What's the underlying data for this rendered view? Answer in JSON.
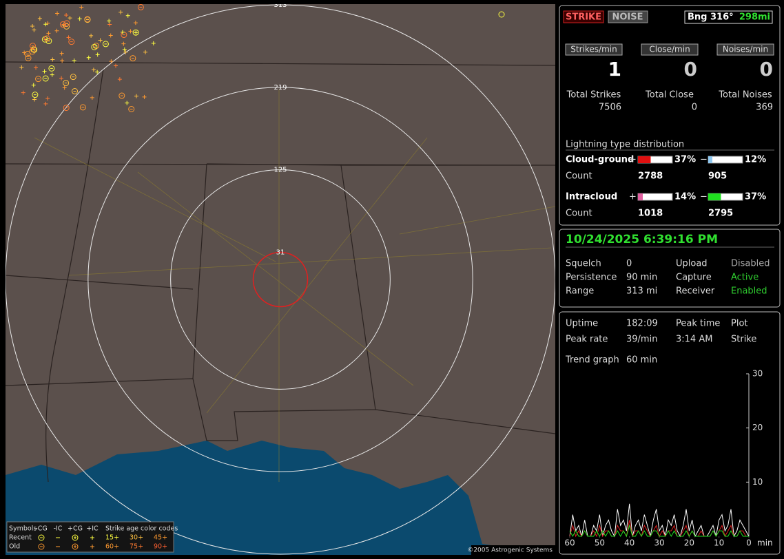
{
  "map": {
    "range_rings": [
      313,
      219,
      125,
      31
    ],
    "legend": {
      "symbols_label": "Symbols",
      "symbol_headers": [
        "-CG",
        "-IC",
        "+CG",
        "+IC"
      ],
      "age_title": "Strike age color codes",
      "rows": [
        {
          "label": "Recent",
          "ages": [
            "15+",
            "30+",
            "45+"
          ],
          "colors": [
            "#ffff40",
            "#ffc040",
            "#ff9a30"
          ]
        },
        {
          "label": "Old",
          "ages": [
            "60+",
            "75+",
            "90+"
          ],
          "colors": [
            "#ff9a30",
            "#ff7a30",
            "#ff6030"
          ]
        }
      ]
    },
    "copyright": "©2005 Astrogenic Systems"
  },
  "header": {
    "mode_buttons": [
      "STRIKE",
      "NOISE"
    ],
    "bearing": "Bng 316°",
    "distance": "298mi"
  },
  "rates": [
    {
      "label": "Strikes/min",
      "value": 1,
      "total_label": "Total Strikes",
      "total": 7506
    },
    {
      "label": "Close/min",
      "value": 0,
      "total_label": "Total Close",
      "total": 0
    },
    {
      "label": "Noises/min",
      "value": 0,
      "total_label": "Total Noises",
      "total": 369
    }
  ],
  "distribution": {
    "title": "Lightning type distribution",
    "plus_sign": "+",
    "minus_sign": "−",
    "count_label": "Count",
    "rows": [
      {
        "name": "Cloud-ground",
        "plus": 37,
        "plus_label": "37%",
        "plus_color": "#e01010",
        "minus": 12,
        "minus_label": "12%",
        "minus_color": "#90c8f0",
        "plus_count": 2788,
        "minus_count": 905
      },
      {
        "name": "Intracloud",
        "plus": 14,
        "plus_label": "14%",
        "plus_color": "#e060a0",
        "minus": 37,
        "minus_label": "37%",
        "minus_color": "#20e020",
        "plus_count": 1018,
        "minus_count": 2795
      }
    ]
  },
  "status": {
    "datetime": "10/24/2025 6:39:16 PM",
    "rows": [
      [
        "Squelch",
        "0",
        "Upload",
        "Disabled"
      ],
      [
        "Persistence",
        "90 min",
        "Capture",
        "Active"
      ],
      [
        "Range",
        "313 mi",
        "Receiver",
        "Enabled"
      ]
    ],
    "value_colors": [
      "#aaaaaa",
      "#30d030",
      "#30d030"
    ]
  },
  "stats": {
    "rows": [
      [
        "Uptime",
        "182:09",
        "Peak time",
        "Plot"
      ],
      [
        "Peak rate",
        "39/min",
        "3:14 AM",
        "Strike"
      ]
    ],
    "trend_label": "Trend graph",
    "trend_window": "60 min"
  },
  "trend": {
    "type": "line",
    "xlim": [
      60,
      0
    ],
    "xticks": [
      60,
      50,
      40,
      30,
      20,
      10,
      0
    ],
    "x_unit": "min",
    "ylim": [
      0,
      30
    ],
    "yticks": [
      10,
      20,
      30
    ],
    "x": [
      60,
      59,
      58,
      57,
      56,
      55,
      54,
      53,
      52,
      51,
      50,
      49,
      48,
      47,
      46,
      45,
      44,
      43,
      42,
      41,
      40,
      39,
      38,
      37,
      36,
      35,
      34,
      33,
      32,
      31,
      30,
      29,
      28,
      27,
      26,
      25,
      24,
      23,
      22,
      21,
      20,
      19,
      18,
      17,
      16,
      15,
      14,
      13,
      12,
      11,
      10,
      9,
      8,
      7,
      6,
      5,
      4,
      3,
      2,
      1,
      0
    ],
    "series": [
      {
        "color": "#ffffff",
        "values": [
          0,
          4,
          1,
          2,
          0,
          3,
          0,
          0,
          2,
          1,
          4,
          0,
          2,
          3,
          1,
          0,
          5,
          2,
          3,
          1,
          6,
          0,
          2,
          3,
          1,
          4,
          2,
          0,
          3,
          5,
          1,
          2,
          0,
          3,
          2,
          4,
          1,
          0,
          2,
          5,
          1,
          3,
          0,
          1,
          2,
          0,
          0,
          1,
          2,
          0,
          3,
          4,
          1,
          2,
          5,
          0,
          1,
          3,
          2,
          1,
          0
        ]
      },
      {
        "color": "#e02020",
        "values": [
          0,
          2,
          0,
          1,
          0,
          1,
          0,
          0,
          1,
          0,
          2,
          0,
          1,
          1,
          0,
          0,
          2,
          1,
          1,
          0,
          3,
          0,
          1,
          1,
          0,
          2,
          1,
          0,
          1,
          2,
          0,
          1,
          0,
          1,
          1,
          2,
          0,
          0,
          1,
          2,
          0,
          1,
          0,
          0,
          1,
          0,
          0,
          0,
          1,
          0,
          1,
          2,
          0,
          1,
          2,
          0,
          0,
          1,
          1,
          0,
          0
        ]
      },
      {
        "color": "#20e020",
        "values": [
          1,
          0,
          1,
          0,
          0,
          1,
          0,
          0,
          0,
          1,
          0,
          1,
          0,
          1,
          0,
          0,
          1,
          0,
          1,
          0,
          2,
          0,
          0,
          1,
          0,
          1,
          0,
          0,
          1,
          1,
          0,
          0,
          0,
          1,
          0,
          1,
          0,
          0,
          0,
          1,
          0,
          1,
          0,
          0,
          0,
          0,
          0,
          0,
          1,
          0,
          1,
          1,
          0,
          0,
          1,
          0,
          0,
          1,
          0,
          0,
          0
        ]
      }
    ]
  }
}
